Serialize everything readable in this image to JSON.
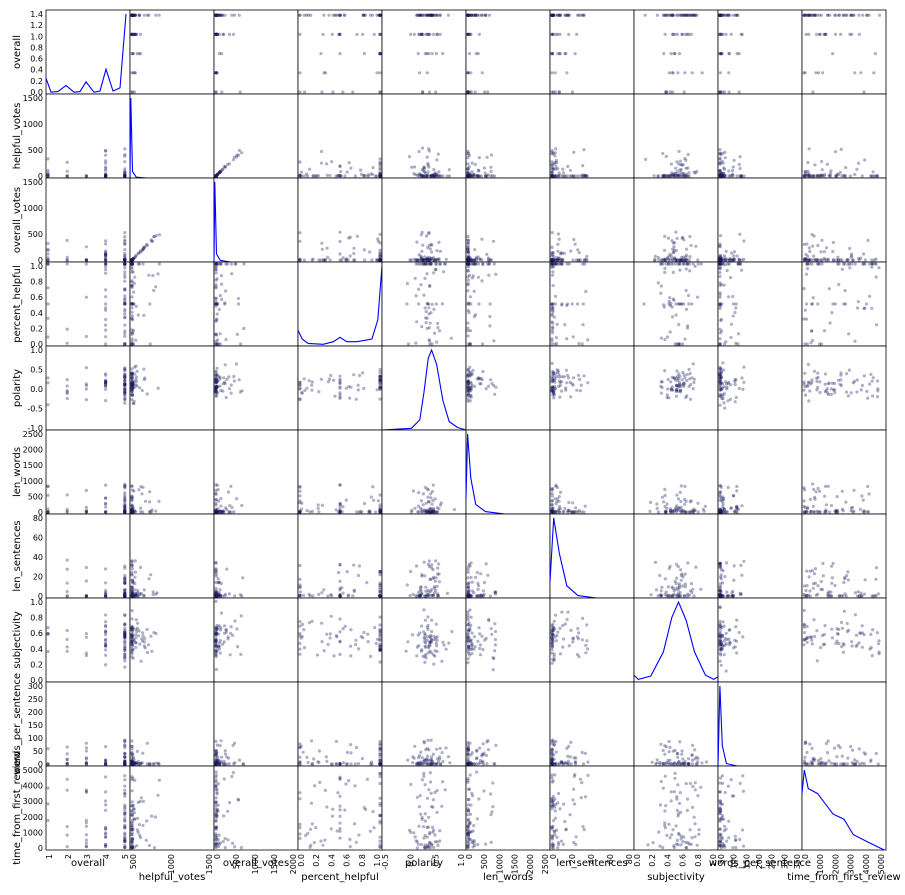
{
  "chart_data": {
    "type": "scatter-matrix",
    "variables": [
      "overall",
      "helpful_votes",
      "overall_votes",
      "percent_helpful",
      "polarity",
      "len_words",
      "len_sentences",
      "subjectivity",
      "words_per_sentence",
      "time_from_first_review"
    ],
    "diagonal": "kde",
    "marker_color": "#1a1a5e",
    "line_color": "#0000ff",
    "ranges": {
      "overall": [
        1,
        5.2
      ],
      "helpful_votes": [
        0,
        2000
      ],
      "overall_votes": [
        0,
        2000
      ],
      "percent_helpful": [
        0,
        1
      ],
      "polarity": [
        -1,
        1
      ],
      "len_words": [
        0,
        2600
      ],
      "len_sentences": [
        0,
        90
      ],
      "subjectivity": [
        0,
        1
      ],
      "words_per_sentence": [
        0,
        350
      ],
      "time_from_first_review": [
        0,
        5400
      ]
    },
    "x_ticks": {
      "overall": [
        "1",
        "2",
        "3",
        "4",
        "5"
      ],
      "helpful_votes": [
        "500",
        "1000",
        "1500"
      ],
      "overall_votes": [
        "0",
        "500",
        "1000",
        "1500",
        "2000"
      ],
      "percent_helpful": [
        "0.0",
        "0.2",
        "0.4",
        "0.6",
        "0.8",
        "1.0"
      ],
      "polarity": [
        "-0.5",
        "0.0",
        "0.5",
        "1.0"
      ],
      "len_words": [
        "0",
        "500",
        "1000",
        "1500",
        "2000",
        "2500"
      ],
      "len_sentences": [
        "0",
        "20",
        "40",
        "60",
        "80"
      ],
      "subjectivity": [
        "0.0",
        "0.2",
        "0.4",
        "0.6",
        "0.8",
        "1.0"
      ],
      "words_per_sentence": [
        "50",
        "100",
        "150",
        "200",
        "250",
        "300",
        "350"
      ],
      "time_from_first_review": [
        "0",
        "1000",
        "2000",
        "3000",
        "4000",
        "5000"
      ]
    },
    "y_ticks": {
      "overall": [
        "0.0",
        "0.2",
        "0.4",
        "0.6",
        "0.8",
        "1.0",
        "1.2",
        "1.4"
      ],
      "helpful_votes": [
        "0",
        "500",
        "1000",
        "1500"
      ],
      "overall_votes": [
        "0",
        "500",
        "1000",
        "1500"
      ],
      "percent_helpful": [
        "0.0",
        "0.2",
        "0.4",
        "0.6",
        "0.8",
        "1.0"
      ],
      "polarity": [
        "-1.0",
        "-0.5",
        "0.0",
        "0.5",
        "1.0"
      ],
      "len_words": [
        "0",
        "500",
        "1000",
        "1500",
        "2000",
        "2500"
      ],
      "len_sentences": [
        "0",
        "20",
        "40",
        "60",
        "80"
      ],
      "subjectivity": [
        "0.0",
        "0.2",
        "0.4",
        "0.6",
        "0.8",
        "1.0"
      ],
      "words_per_sentence": [
        "0",
        "50",
        "100",
        "150",
        "200",
        "250",
        "300"
      ],
      "time_from_first_review": [
        "0",
        "1000",
        "2000",
        "3000",
        "4000",
        "5000"
      ]
    },
    "diagonal_density": {
      "overall": [
        [
          1.0,
          0.26
        ],
        [
          1.25,
          0.03
        ],
        [
          1.6,
          0.04
        ],
        [
          2.0,
          0.14
        ],
        [
          2.4,
          0.03
        ],
        [
          2.7,
          0.04
        ],
        [
          3.0,
          0.2
        ],
        [
          3.4,
          0.03
        ],
        [
          3.7,
          0.05
        ],
        [
          4.0,
          0.41
        ],
        [
          4.35,
          0.05
        ],
        [
          4.7,
          0.1
        ],
        [
          5.0,
          1.32
        ]
      ],
      "helpful_votes": [
        [
          0,
          0.0
        ],
        [
          20,
          1.0
        ],
        [
          60,
          0.08
        ],
        [
          150,
          0.01
        ],
        [
          400,
          0.0
        ],
        [
          2000,
          0.0
        ]
      ],
      "overall_votes": [
        [
          0,
          0.0
        ],
        [
          20,
          1.0
        ],
        [
          60,
          0.1
        ],
        [
          150,
          0.02
        ],
        [
          400,
          0.0
        ],
        [
          2000,
          0.0
        ]
      ],
      "percent_helpful": [
        [
          0.0,
          0.18
        ],
        [
          0.05,
          0.08
        ],
        [
          0.12,
          0.03
        ],
        [
          0.3,
          0.02
        ],
        [
          0.42,
          0.05
        ],
        [
          0.5,
          0.1
        ],
        [
          0.58,
          0.05
        ],
        [
          0.7,
          0.05
        ],
        [
          0.88,
          0.08
        ],
        [
          0.95,
          0.3
        ],
        [
          1.0,
          0.92
        ]
      ],
      "polarity": [
        [
          -1.0,
          0.0
        ],
        [
          -0.3,
          0.02
        ],
        [
          -0.1,
          0.12
        ],
        [
          0.0,
          0.45
        ],
        [
          0.1,
          0.85
        ],
        [
          0.18,
          0.95
        ],
        [
          0.3,
          0.78
        ],
        [
          0.45,
          0.35
        ],
        [
          0.6,
          0.1
        ],
        [
          0.8,
          0.03
        ],
        [
          1.0,
          0.0
        ]
      ],
      "len_words": [
        [
          0,
          0.2
        ],
        [
          50,
          1.0
        ],
        [
          150,
          0.45
        ],
        [
          300,
          0.12
        ],
        [
          600,
          0.03
        ],
        [
          1200,
          0.0
        ],
        [
          2600,
          0.0
        ]
      ],
      "len_sentences": [
        [
          0,
          0.2
        ],
        [
          4,
          0.98
        ],
        [
          10,
          0.55
        ],
        [
          18,
          0.15
        ],
        [
          30,
          0.03
        ],
        [
          50,
          0.0
        ],
        [
          90,
          0.0
        ]
      ],
      "subjectivity": [
        [
          0.0,
          0.08
        ],
        [
          0.05,
          0.03
        ],
        [
          0.2,
          0.07
        ],
        [
          0.35,
          0.35
        ],
        [
          0.45,
          0.75
        ],
        [
          0.53,
          0.93
        ],
        [
          0.62,
          0.72
        ],
        [
          0.72,
          0.35
        ],
        [
          0.85,
          0.08
        ],
        [
          0.95,
          0.03
        ],
        [
          1.0,
          0.06
        ]
      ],
      "words_per_sentence": [
        [
          0,
          0.0
        ],
        [
          8,
          0.98
        ],
        [
          18,
          0.25
        ],
        [
          35,
          0.03
        ],
        [
          80,
          0.0
        ],
        [
          350,
          0.0
        ]
      ],
      "time_from_first_review": [
        [
          0,
          0.55
        ],
        [
          150,
          0.78
        ],
        [
          400,
          0.6
        ],
        [
          1000,
          0.55
        ],
        [
          1500,
          0.45
        ],
        [
          2000,
          0.35
        ],
        [
          2700,
          0.3
        ],
        [
          3300,
          0.15
        ],
        [
          4200,
          0.08
        ],
        [
          5000,
          0.02
        ],
        [
          5300,
          0.0
        ]
      ]
    }
  }
}
